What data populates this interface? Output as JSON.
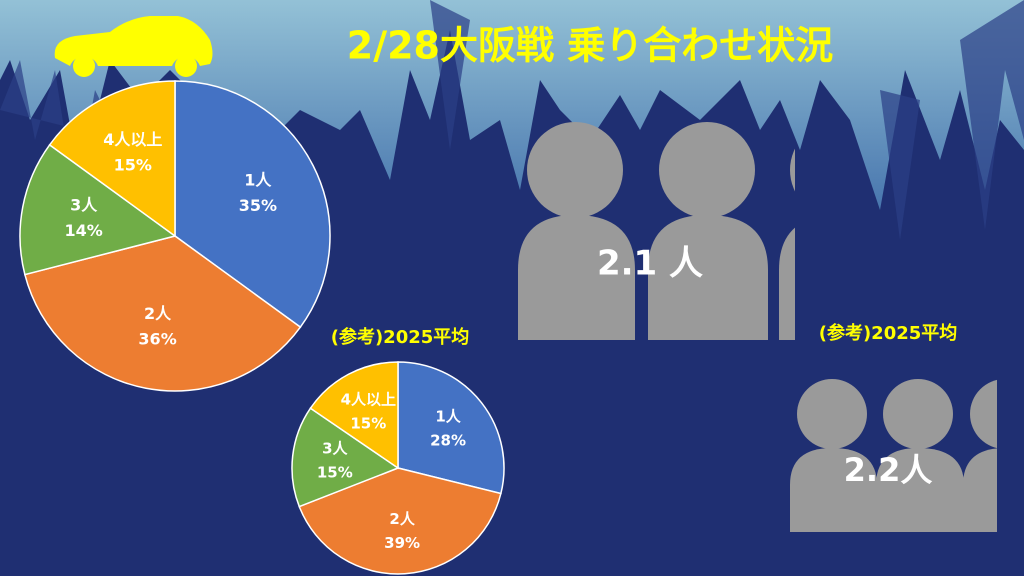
{
  "title": "2/28大阪戦 乗り合わせ状況",
  "chart_data": [
    {
      "type": "pie",
      "categories": [
        "1人",
        "2人",
        "3人",
        "4人以上"
      ],
      "values": [
        35,
        36,
        14,
        15
      ],
      "value_labels": [
        "35%",
        "36%",
        "14%",
        "15%"
      ],
      "colors": [
        "#4472c4",
        "#ed7d31",
        "#70ad47",
        "#ffc000"
      ]
    },
    {
      "type": "pie",
      "title": "(参考)2025平均",
      "categories": [
        "1人",
        "2人",
        "3人",
        "4人以上"
      ],
      "values": [
        28,
        39,
        15,
        15
      ],
      "value_labels": [
        "28%",
        "39%",
        "15%",
        "15%"
      ],
      "colors": [
        "#4472c4",
        "#ed7d31",
        "#70ad47",
        "#ffc000"
      ]
    }
  ],
  "people": [
    {
      "value_label": "2.1 人"
    },
    {
      "title": "(参考)2025平均",
      "value_label": "2.2人"
    }
  ]
}
